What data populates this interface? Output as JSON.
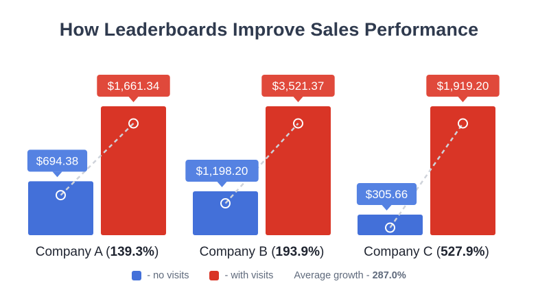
{
  "colors": {
    "no_visits": "#4370d9",
    "with_visits": "#d93526",
    "tooltip_no": "#5582e2",
    "tooltip_with": "#e0493b",
    "connector": "#cfd3da"
  },
  "chart_data": {
    "type": "bar",
    "title": "How Leaderboards Improve Sales Performance",
    "categories": [
      "Company A",
      "Company B",
      "Company C"
    ],
    "growth": [
      "139.3%",
      "193.9%",
      "527.9%"
    ],
    "series": [
      {
        "name": "- no visits",
        "values": [
          694.38,
          1198.2,
          305.66
        ],
        "labels": [
          "$694.38",
          "$1,198.20",
          "$305.66"
        ]
      },
      {
        "name": "- with visits",
        "values": [
          1661.34,
          3521.37,
          1919.2
        ],
        "labels": [
          "$1,661.34",
          "$3,521.37",
          "$1,919.20"
        ]
      }
    ],
    "average_growth_label": "Average growth -",
    "average_growth_value": "287.0%",
    "grid": false,
    "legend_position": "bottom"
  }
}
